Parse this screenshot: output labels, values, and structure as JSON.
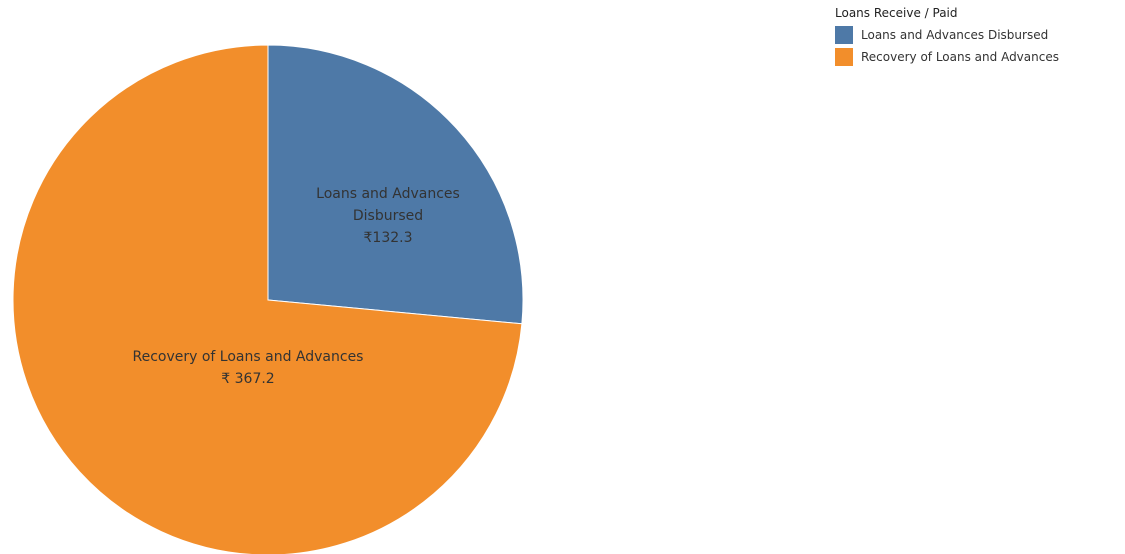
{
  "chart_data": {
    "type": "pie",
    "legend_title": "Loans Receive / Paid",
    "categories": [
      "Loans and Advances Disbursed",
      "Recovery of Loans and Advances"
    ],
    "values": [
      132.3,
      367.2
    ],
    "value_labels": [
      "₹132.3",
      "₹ 367.2"
    ],
    "colors": [
      "#4e79a7",
      "#f28e2b"
    ],
    "legend": "top-right"
  }
}
